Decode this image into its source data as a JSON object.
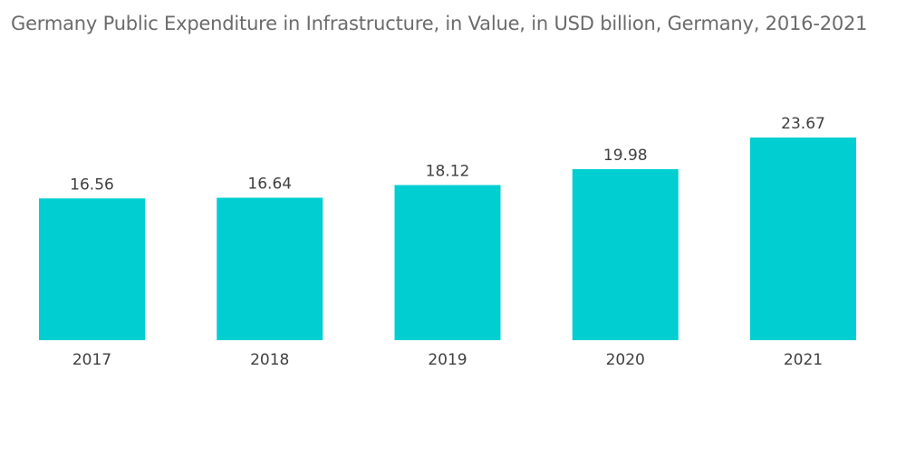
{
  "chart_data": {
    "type": "bar",
    "title": "Germany Public Expenditure in Infrastructure, in Value, in USD billion, Germany, 2016-2021",
    "categories": [
      "2017",
      "2018",
      "2019",
      "2020",
      "2021"
    ],
    "values": [
      16.56,
      16.64,
      18.12,
      19.98,
      23.67
    ],
    "value_labels": [
      "16.56",
      "16.64",
      "18.12",
      "19.98",
      "23.67"
    ],
    "xlabel": "",
    "ylabel": "",
    "ylim": [
      0,
      23.67
    ],
    "grid": false,
    "legend": "none",
    "bar_color": "#00CED1"
  }
}
